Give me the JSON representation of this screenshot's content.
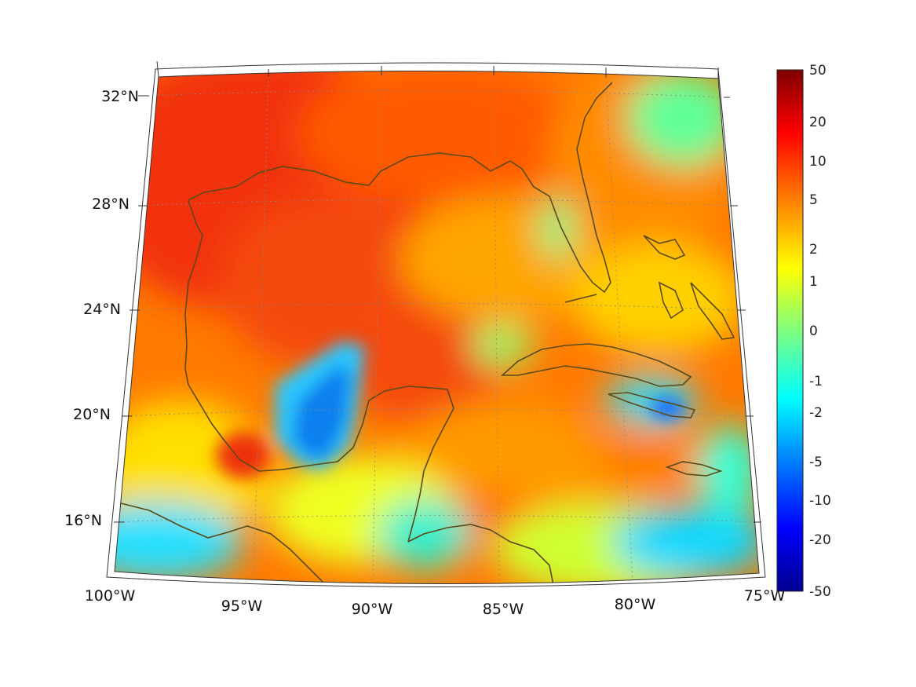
{
  "map": {
    "projection": "lambert-conic",
    "lon_range": [
      -100,
      -75
    ],
    "lat_range": [
      14,
      33
    ],
    "graticule": "dotted",
    "coastline_color": "#5a4a1a",
    "field": "anomaly",
    "lon_tick_labels": [
      "100°W",
      "95°W",
      "90°W",
      "85°W",
      "80°W",
      "75°W"
    ],
    "lat_tick_labels": [
      "16°N",
      "20°N",
      "24°N",
      "28°N",
      "32°N"
    ]
  },
  "colorbar": {
    "colormap": "jet",
    "scale": "symmetric-log",
    "tick_labels": [
      "50",
      "20",
      "10",
      "5",
      "2",
      "1",
      "0",
      "-1",
      "-2",
      "-5",
      "-10",
      "-20",
      "-50"
    ],
    "colors": [
      "#00008f",
      "#0000ff",
      "#007fff",
      "#00ffff",
      "#7fff7f",
      "#ffff00",
      "#ff7f00",
      "#ff0000",
      "#7f0000"
    ]
  }
}
